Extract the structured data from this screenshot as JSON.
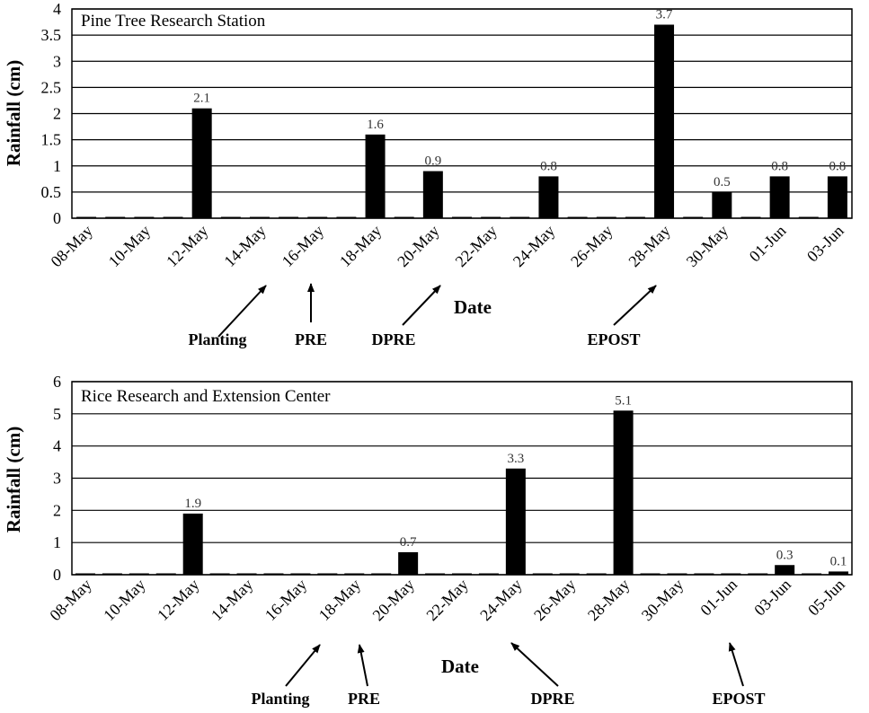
{
  "chart_data": [
    {
      "type": "bar",
      "title": "Pine Tree Research Station",
      "xlabel": "Date",
      "ylabel": "Rainfall (cm)",
      "ylim": [
        0,
        4
      ],
      "yticks": [
        "0",
        "0.5",
        "1",
        "1.5",
        "2",
        "2.5",
        "3",
        "3.5",
        "4"
      ],
      "grid": true,
      "categories": [
        "08-May",
        "09-May",
        "10-May",
        "11-May",
        "12-May",
        "13-May",
        "14-May",
        "15-May",
        "16-May",
        "17-May",
        "18-May",
        "19-May",
        "20-May",
        "21-May",
        "22-May",
        "23-May",
        "24-May",
        "25-May",
        "26-May",
        "27-May",
        "28-May",
        "29-May",
        "30-May",
        "31-May",
        "01-Jun",
        "02-Jun",
        "03-Jun"
      ],
      "xticklabels": [
        "08-May",
        "10-May",
        "12-May",
        "14-May",
        "16-May",
        "18-May",
        "20-May",
        "22-May",
        "24-May",
        "26-May",
        "28-May",
        "30-May",
        "01-Jun",
        "03-Jun"
      ],
      "values": [
        0,
        0,
        0,
        0,
        2.1,
        0,
        0,
        0,
        0,
        0,
        1.6,
        0,
        0.9,
        0,
        0,
        0,
        0.8,
        0,
        0,
        0,
        3.7,
        0,
        0.5,
        0,
        0.8,
        0,
        0.8
      ],
      "data_labels": [
        "",
        "",
        "",
        "",
        "2.1",
        "",
        "",
        "",
        "",
        "",
        "1.6",
        "",
        "0.9",
        "",
        "",
        "",
        "0.8",
        "",
        "",
        "",
        "3.7",
        "",
        "0.5",
        "",
        "0.8",
        "",
        "0.8"
      ],
      "annotations": [
        {
          "text": "Planting",
          "target": "15-May"
        },
        {
          "text": "PRE",
          "target": "16-May"
        },
        {
          "text": "DPRE",
          "target": "21-May"
        },
        {
          "text": "EPOST",
          "target": "29-May"
        }
      ]
    },
    {
      "type": "bar",
      "title": "Rice Research and Extension  Center",
      "xlabel": "Date",
      "ylabel": "Rainfall (cm)",
      "ylim": [
        0,
        6
      ],
      "yticks": [
        "0",
        "1",
        "2",
        "3",
        "4",
        "5",
        "6"
      ],
      "grid": true,
      "categories": [
        "08-May",
        "09-May",
        "10-May",
        "11-May",
        "12-May",
        "13-May",
        "14-May",
        "15-May",
        "16-May",
        "17-May",
        "18-May",
        "19-May",
        "20-May",
        "21-May",
        "22-May",
        "23-May",
        "24-May",
        "25-May",
        "26-May",
        "27-May",
        "28-May",
        "29-May",
        "30-May",
        "31-May",
        "01-Jun",
        "02-Jun",
        "03-Jun",
        "04-Jun",
        "05-Jun"
      ],
      "xticklabels": [
        "08-May",
        "10-May",
        "12-May",
        "14-May",
        "16-May",
        "18-May",
        "20-May",
        "22-May",
        "24-May",
        "26-May",
        "28-May",
        "30-May",
        "01-Jun",
        "03-Jun",
        "05-Jun"
      ],
      "values": [
        0,
        0,
        0,
        0,
        1.9,
        0,
        0,
        0,
        0,
        0,
        0,
        0,
        0.7,
        0,
        0,
        0,
        3.3,
        0,
        0,
        0,
        5.1,
        0,
        0,
        0,
        0,
        0,
        0.3,
        0,
        0.1
      ],
      "data_labels": [
        "",
        "",
        "",
        "",
        "1.9",
        "",
        "",
        "",
        "",
        "",
        "",
        "",
        "0.7",
        "",
        "",
        "",
        "3.3",
        "",
        "",
        "",
        "5.1",
        "",
        "",
        "",
        "",
        "",
        "0.3",
        "",
        "0.1"
      ],
      "annotations": [
        {
          "text": "Planting",
          "target": "17-May"
        },
        {
          "text": "PRE",
          "target": "18-May"
        },
        {
          "text": "DPRE",
          "target": "23-May"
        },
        {
          "text": "EPOST",
          "target": "31-May"
        }
      ]
    }
  ]
}
